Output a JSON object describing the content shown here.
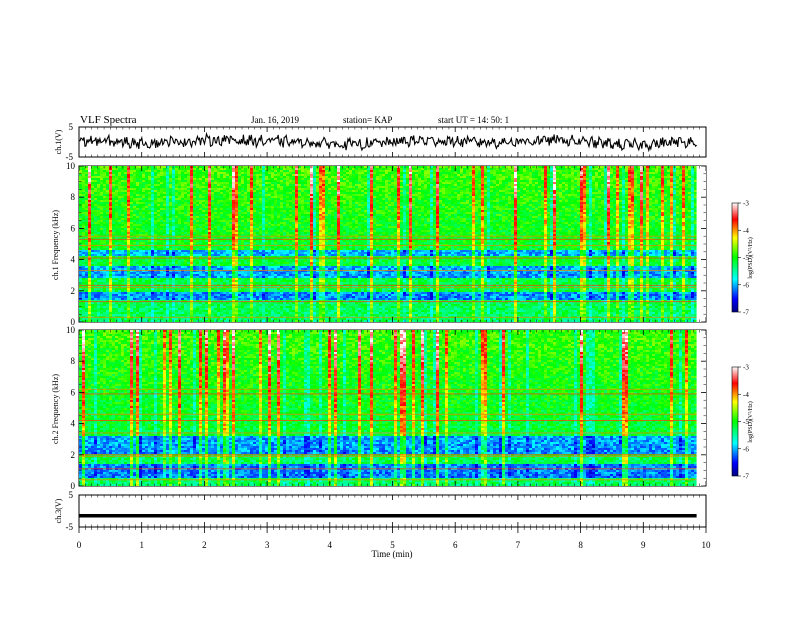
{
  "header": {
    "title": "VLF Spectra",
    "date": "Jan. 16, 2019",
    "station": "station= KAP",
    "start_ut": "start UT =  14: 50: 1"
  },
  "colors": {
    "waveform": "#000000",
    "colormap": [
      "#000080",
      "#0000ff",
      "#00ffff",
      "#00ff00",
      "#ffff00",
      "#ff0000",
      "#ffffff"
    ]
  },
  "chart_data": [
    {
      "id": "ch1-waveform",
      "type": "line",
      "ylabel": "ch.1(V)",
      "ylim": [
        -5,
        5
      ],
      "yticks": [
        "5",
        "-5"
      ],
      "xlim": [
        0,
        10
      ],
      "x_range_min": [
        0,
        9.85
      ],
      "series": [
        {
          "values_v_approx": [
            0.8,
            -0.5,
            1.2,
            0.3,
            -1.4,
            0.9,
            -0.2,
            1.1,
            -1.8,
            0.5
          ]
        }
      ]
    },
    {
      "id": "ch1-spectrogram",
      "type": "heatmap",
      "ylabel": "ch.1 Frequency (kHz)",
      "ylim": [
        0,
        10
      ],
      "yticks": [
        "0",
        "2",
        "4",
        "6",
        "8",
        "10"
      ],
      "xlim": [
        0,
        10
      ],
      "x_range_min": [
        0,
        9.85
      ],
      "bands_khz": [
        0.3,
        1.3,
        2.2,
        2.35,
        3.3,
        4.1,
        4.9,
        5.3,
        5.5
      ],
      "low_power_bands_khz": [
        [
          1.5,
          2.0
        ],
        [
          2.9,
          3.6
        ],
        [
          4.3,
          4.7
        ]
      ],
      "colorbar": {
        "label": "log(PSD)(V²/Hz)",
        "ticks": [
          "-3",
          "-4",
          "-5",
          "-6",
          "-7"
        ],
        "range": [
          -7,
          -3
        ]
      }
    },
    {
      "id": "ch2-spectrogram",
      "type": "heatmap",
      "ylabel": "ch.2 Frequency (kHz)",
      "ylim": [
        0,
        10
      ],
      "yticks": [
        "0",
        "2",
        "4",
        "6",
        "8",
        "10"
      ],
      "xlim": [
        0,
        10
      ],
      "x_range_min": [
        0,
        9.85
      ],
      "bands_khz": [
        0.4,
        1.1,
        1.9,
        2.0,
        3.4,
        4.2,
        4.6,
        5.9,
        6.2
      ],
      "low_power_bands_khz": [
        [
          0.6,
          1.5
        ],
        [
          2.1,
          3.3
        ]
      ],
      "colorbar": {
        "label": "log(PSD)(V²/Hz)",
        "ticks": [
          "-3",
          "-4",
          "-5",
          "-6",
          "-7"
        ],
        "range": [
          -7,
          -3
        ]
      }
    },
    {
      "id": "ch3-waveform",
      "type": "line",
      "ylabel": "ch.3(V)",
      "ylim": [
        -5,
        5
      ],
      "yticks": [
        "5",
        "-5"
      ],
      "xlim": [
        0,
        10
      ],
      "x_range_min": [
        0,
        9.85
      ],
      "xlabel": "Time (min)",
      "xticks": [
        "0",
        "1",
        "2",
        "3",
        "4",
        "5",
        "6",
        "7",
        "8",
        "9",
        "10"
      ],
      "series": [
        {
          "constant_v": -1.5
        }
      ]
    }
  ]
}
